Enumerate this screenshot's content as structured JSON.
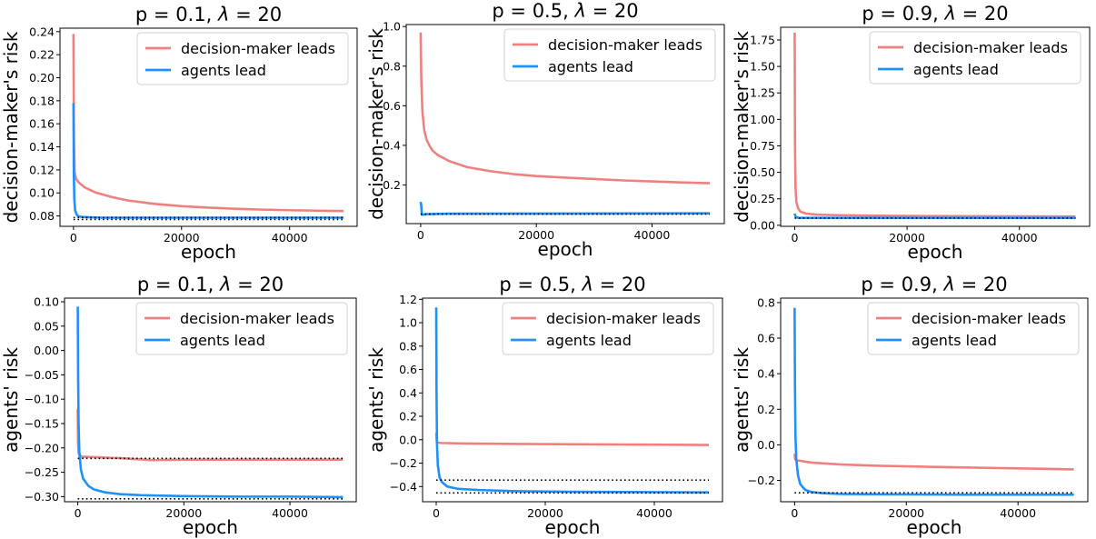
{
  "colors": {
    "dm": "#F08080",
    "ag": "#1E90FF",
    "ref": "#000000"
  },
  "chart_data": [
    {
      "type": "line",
      "title": "p = 0.1, λ = 20",
      "title_prefix": "p = 0.1, ",
      "title_lambda": "λ",
      "title_suffix": " = 20",
      "xlabel": "epoch",
      "ylabel": "decision-maker's risk",
      "xlim": [
        -2500,
        52500
      ],
      "ylim": [
        0.071,
        0.243
      ],
      "xticks": [
        0,
        20000,
        40000
      ],
      "xtick_labels": [
        "0",
        "20000",
        "40000"
      ],
      "yticks": [
        0.08,
        0.1,
        0.12,
        0.14,
        0.16,
        0.18,
        0.2,
        0.22,
        0.24
      ],
      "ytick_labels": [
        "0.08",
        "0.10",
        "0.12",
        "0.14",
        "0.16",
        "0.18",
        "0.20",
        "0.22",
        "0.24"
      ],
      "legend": {
        "position": "upper right",
        "entries": [
          "decision-maker leads",
          "agents lead"
        ]
      },
      "series": [
        {
          "name": "decision-maker leads",
          "color": "#F08080",
          "x": [
            0,
            80,
            200,
            500,
            1000,
            2000,
            4000,
            7000,
            10000,
            15000,
            20000,
            25000,
            30000,
            35000,
            40000,
            45000,
            50000
          ],
          "values": [
            0.238,
            0.15,
            0.118,
            0.112,
            0.109,
            0.105,
            0.1005,
            0.0965,
            0.0935,
            0.0905,
            0.0885,
            0.0872,
            0.0862,
            0.0855,
            0.085,
            0.0846,
            0.0843
          ]
        },
        {
          "name": "agents lead",
          "color": "#1E90FF",
          "x": [
            0,
            60,
            150,
            300,
            600,
            1000,
            2000,
            5000,
            50000
          ],
          "values": [
            0.178,
            0.118,
            0.095,
            0.085,
            0.081,
            0.0795,
            0.079,
            0.0785,
            0.0785
          ]
        }
      ],
      "references": [
        {
          "x": [
            0,
            50000
          ],
          "values": [
            0.0787,
            0.0787
          ]
        },
        {
          "x": [
            0,
            50000
          ],
          "values": [
            0.077,
            0.077
          ]
        }
      ]
    },
    {
      "type": "line",
      "title": "p = 0.5, λ = 20",
      "title_prefix": "p = 0.5, ",
      "title_lambda": "λ",
      "title_suffix": " = 20",
      "xlabel": "epoch",
      "ylabel": "decision-maker's risk",
      "xlim": [
        -2500,
        52500
      ],
      "ylim": [
        0.005,
        1.01
      ],
      "xticks": [
        0,
        20000,
        40000
      ],
      "xtick_labels": [
        "0",
        "20000",
        "40000"
      ],
      "yticks": [
        0.2,
        0.4,
        0.6,
        0.8,
        1.0
      ],
      "ytick_labels": [
        "0.2",
        "0.4",
        "0.6",
        "0.8",
        "1.0"
      ],
      "legend": {
        "position": "upper right",
        "entries": [
          "decision-maker leads",
          "agents lead"
        ]
      },
      "series": [
        {
          "name": "decision-maker leads",
          "color": "#F08080",
          "x": [
            0,
            100,
            300,
            600,
            1000,
            1500,
            2000,
            3000,
            5000,
            8000,
            12000,
            16000,
            20000,
            25000,
            30000,
            35000,
            40000,
            45000,
            50000
          ],
          "values": [
            0.97,
            0.74,
            0.57,
            0.48,
            0.43,
            0.4,
            0.375,
            0.35,
            0.32,
            0.29,
            0.27,
            0.255,
            0.245,
            0.237,
            0.23,
            0.223,
            0.218,
            0.213,
            0.209
          ]
        },
        {
          "name": "agents lead",
          "color": "#1E90FF",
          "x": [
            0,
            100,
            200,
            400,
            1000,
            5000,
            50000
          ],
          "values": [
            0.115,
            0.095,
            0.05,
            0.05,
            0.053,
            0.055,
            0.057
          ]
        }
      ],
      "references": [
        {
          "x": [
            0,
            50000
          ],
          "values": [
            0.053,
            0.053
          ]
        }
      ]
    },
    {
      "type": "line",
      "title": "p = 0.9, λ = 20",
      "title_prefix": "p = 0.9, ",
      "title_lambda": "λ",
      "title_suffix": " = 20",
      "xlabel": "epoch",
      "ylabel": "decision-maker's risk",
      "xlim": [
        -2500,
        52500
      ],
      "ylim": [
        -0.01,
        1.87
      ],
      "xticks": [
        0,
        20000,
        40000
      ],
      "xtick_labels": [
        "0",
        "20000",
        "40000"
      ],
      "yticks": [
        0.0,
        0.25,
        0.5,
        0.75,
        1.0,
        1.25,
        1.5,
        1.75
      ],
      "ytick_labels": [
        "0.00",
        "0.25",
        "0.50",
        "0.75",
        "1.00",
        "1.25",
        "1.50",
        "1.75"
      ],
      "legend": {
        "position": "upper right",
        "entries": [
          "decision-maker leads",
          "agents lead"
        ]
      },
      "series": [
        {
          "name": "decision-maker leads",
          "color": "#F08080",
          "x": [
            0,
            50,
            150,
            300,
            600,
            1000,
            2000,
            4000,
            8000,
            15000,
            25000,
            35000,
            50000
          ],
          "values": [
            1.82,
            0.8,
            0.35,
            0.22,
            0.16,
            0.13,
            0.11,
            0.1,
            0.095,
            0.09,
            0.087,
            0.085,
            0.083
          ]
        },
        {
          "name": "agents lead",
          "color": "#1E90FF",
          "x": [
            0,
            100,
            300,
            700,
            1500,
            3000,
            50000
          ],
          "values": [
            0.11,
            0.09,
            0.075,
            0.07,
            0.07,
            0.07,
            0.07
          ]
        }
      ],
      "references": [
        {
          "x": [
            0,
            50000
          ],
          "values": [
            0.068,
            0.068
          ]
        }
      ]
    },
    {
      "type": "line",
      "title": "p = 0.1, λ = 20",
      "title_prefix": "p = 0.1, ",
      "title_lambda": "λ",
      "title_suffix": " = 20",
      "xlabel": "epoch",
      "ylabel": "agents' risk",
      "xlim": [
        -2500,
        52500
      ],
      "ylim": [
        -0.3105,
        0.1075
      ],
      "xticks": [
        0,
        20000,
        40000
      ],
      "xtick_labels": [
        "0",
        "20000",
        "40000"
      ],
      "yticks": [
        -0.3,
        -0.25,
        -0.2,
        -0.15,
        -0.1,
        -0.05,
        0.0,
        0.05,
        0.1
      ],
      "ytick_labels": [
        "−0.30",
        "−0.25",
        "−0.20",
        "−0.15",
        "−0.10",
        "−0.05",
        "0.00",
        "0.05",
        "0.10"
      ],
      "legend": {
        "position": "upper right",
        "entries": [
          "decision-maker leads",
          "agents lead"
        ]
      },
      "series": [
        {
          "name": "decision-maker leads",
          "color": "#F08080",
          "x": [
            0,
            50,
            150,
            300,
            800,
            3000,
            8000,
            14000,
            20000,
            30000,
            40000,
            50000
          ],
          "values": [
            -0.12,
            -0.19,
            -0.21,
            -0.215,
            -0.218,
            -0.219,
            -0.221,
            -0.225,
            -0.224,
            -0.224,
            -0.224,
            -0.224
          ]
        },
        {
          "name": "agents lead",
          "color": "#1E90FF",
          "x": [
            0,
            60,
            150,
            300,
            600,
            1000,
            2000,
            3000,
            5000,
            8000,
            12000,
            16000,
            20000,
            30000,
            40000,
            50000
          ],
          "values": [
            0.09,
            -0.05,
            -0.15,
            -0.21,
            -0.245,
            -0.263,
            -0.278,
            -0.285,
            -0.291,
            -0.295,
            -0.297,
            -0.298,
            -0.299,
            -0.3,
            -0.3,
            -0.301
          ]
        }
      ],
      "references": [
        {
          "x": [
            0,
            50000
          ],
          "values": [
            -0.2215,
            -0.2215
          ]
        },
        {
          "x": [
            0,
            50000
          ],
          "values": [
            -0.3045,
            -0.3045
          ]
        }
      ]
    },
    {
      "type": "line",
      "title": "p = 0.5, λ = 20",
      "title_prefix": "p = 0.5, ",
      "title_lambda": "λ",
      "title_suffix": " = 20",
      "xlabel": "epoch",
      "ylabel": "agents' risk",
      "xlim": [
        -2500,
        52500
      ],
      "ylim": [
        -0.53,
        1.21
      ],
      "xticks": [
        0,
        20000,
        40000
      ],
      "xtick_labels": [
        "0",
        "20000",
        "40000"
      ],
      "yticks": [
        -0.4,
        -0.2,
        0.0,
        0.2,
        0.4,
        0.6,
        0.8,
        1.0,
        1.2
      ],
      "ytick_labels": [
        "−0.4",
        "−0.2",
        "0.0",
        "0.2",
        "0.4",
        "0.6",
        "0.8",
        "1.0",
        "1.2"
      ],
      "legend": {
        "position": "upper right",
        "entries": [
          "decision-maker leads",
          "agents lead"
        ]
      },
      "series": [
        {
          "name": "decision-maker leads",
          "color": "#F08080",
          "x": [
            0,
            100,
            300,
            1000,
            5000,
            15000,
            30000,
            50000
          ],
          "values": [
            0.06,
            -0.02,
            -0.025,
            -0.028,
            -0.032,
            -0.036,
            -0.04,
            -0.045
          ]
        },
        {
          "name": "agents lead",
          "color": "#1E90FF",
          "x": [
            0,
            60,
            150,
            300,
            600,
            1000,
            2000,
            4000,
            8000,
            15000,
            25000,
            35000,
            50000
          ],
          "values": [
            1.13,
            0.4,
            -0.05,
            -0.22,
            -0.32,
            -0.36,
            -0.4,
            -0.42,
            -0.43,
            -0.44,
            -0.445,
            -0.447,
            -0.45
          ]
        }
      ],
      "references": [
        {
          "x": [
            0,
            50000
          ],
          "values": [
            -0.345,
            -0.345
          ]
        },
        {
          "x": [
            0,
            50000
          ],
          "values": [
            -0.455,
            -0.455
          ]
        }
      ]
    },
    {
      "type": "line",
      "title": "p = 0.9, λ = 20",
      "title_prefix": "p = 0.9, ",
      "title_lambda": "λ",
      "title_suffix": " = 20",
      "xlabel": "epoch",
      "ylabel": "agents' risk",
      "xlim": [
        -2500,
        52500
      ],
      "ylim": [
        -0.32,
        0.825
      ],
      "xticks": [
        0,
        20000,
        40000
      ],
      "xtick_labels": [
        "0",
        "20000",
        "40000"
      ],
      "yticks": [
        -0.2,
        0.0,
        0.2,
        0.4,
        0.6,
        0.8
      ],
      "ytick_labels": [
        "−0.2",
        "0.0",
        "0.2",
        "0.4",
        "0.6",
        "0.8"
      ],
      "legend": {
        "position": "upper right",
        "entries": [
          "decision-maker leads",
          "agents lead"
        ]
      },
      "series": [
        {
          "name": "decision-maker leads",
          "color": "#F08080",
          "x": [
            0,
            80,
            300,
            1000,
            3000,
            8000,
            15000,
            25000,
            35000,
            45000,
            50000
          ],
          "values": [
            -0.05,
            -0.08,
            -0.087,
            -0.09,
            -0.1,
            -0.11,
            -0.118,
            -0.124,
            -0.13,
            -0.135,
            -0.138
          ]
        },
        {
          "name": "agents lead",
          "color": "#1E90FF",
          "x": [
            0,
            60,
            150,
            300,
            600,
            1000,
            1500,
            2000,
            3000,
            5000,
            8000,
            15000,
            30000,
            50000
          ],
          "values": [
            0.77,
            0.35,
            0.05,
            -0.08,
            -0.17,
            -0.22,
            -0.24,
            -0.255,
            -0.265,
            -0.272,
            -0.276,
            -0.278,
            -0.28,
            -0.28
          ]
        }
      ],
      "references": [
        {
          "x": [
            0,
            50000
          ],
          "values": [
            -0.27,
            -0.27
          ]
        }
      ]
    }
  ]
}
